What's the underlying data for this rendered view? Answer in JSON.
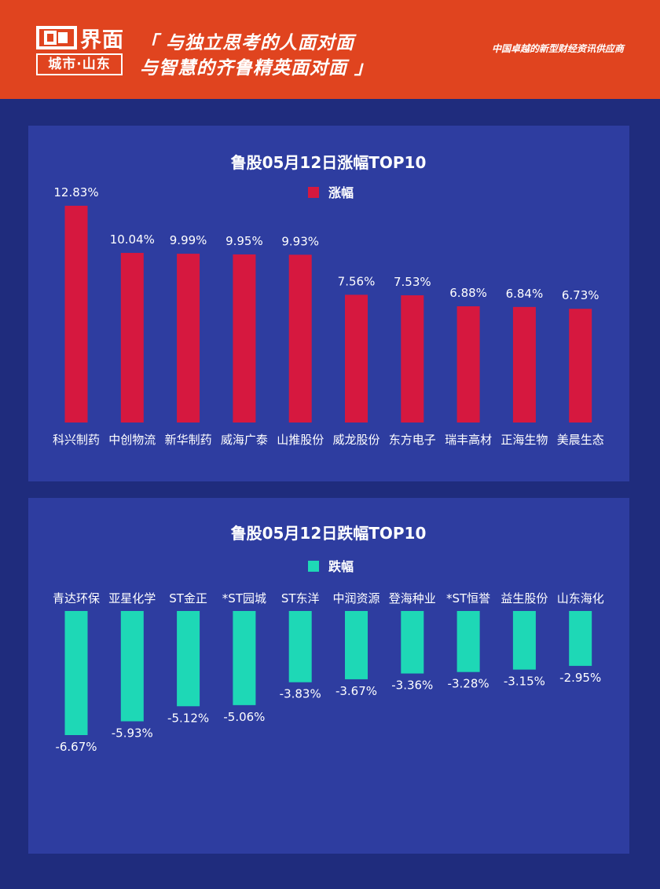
{
  "header": {
    "logo_main": "界面",
    "logo_sub": "城市·山东",
    "slogan_line1": "「 与独立思考的人面对面",
    "slogan_line2": "与智慧的齐鲁精英面对面 」",
    "tagline": "中国卓越的新型财经资讯供应商"
  },
  "colors": {
    "header_bg": "#e0441f",
    "page_bg": "#1f2c7d",
    "panel_bg": "#2e3da0",
    "gain_bar": "#d6183f",
    "loss_bar": "#1ed8b6",
    "text": "#ffffff"
  },
  "chart_data": [
    {
      "type": "bar",
      "title": "鲁股05月12日涨幅TOP10",
      "legend": "涨幅",
      "legend_placement": "top-center",
      "categories": [
        "科兴制药",
        "中创物流",
        "新华制药",
        "威海广泰",
        "山推股份",
        "威龙股份",
        "东方电子",
        "瑞丰高材",
        "正海生物",
        "美晨生态"
      ],
      "values": [
        12.83,
        10.04,
        9.99,
        9.95,
        9.93,
        7.56,
        7.53,
        6.88,
        6.84,
        6.73
      ],
      "labels": [
        "12.83%",
        "10.04%",
        "9.99%",
        "9.95%",
        "9.93%",
        "7.56%",
        "7.53%",
        "6.88%",
        "6.84%",
        "6.73%"
      ],
      "ylim": [
        0,
        14
      ],
      "grid": false,
      "color": "#d6183f"
    },
    {
      "type": "bar",
      "title": "鲁股05月12日跌幅TOP10",
      "legend": "跌幅",
      "legend_placement": "top-center",
      "categories": [
        "青达环保",
        "亚星化学",
        "ST金正",
        "*ST园城",
        "ST东洋",
        "中润资源",
        "登海种业",
        "*ST恒誉",
        "益生股份",
        "山东海化"
      ],
      "values": [
        -6.67,
        -5.93,
        -5.12,
        -5.06,
        -3.83,
        -3.67,
        -3.36,
        -3.28,
        -3.15,
        -2.95
      ],
      "labels": [
        "-6.67%",
        "-5.93%",
        "-5.12%",
        "-5.06%",
        "-3.83%",
        "-3.67%",
        "-3.36%",
        "-3.28%",
        "-3.15%",
        "-2.95%"
      ],
      "ylim": [
        -7,
        0
      ],
      "grid": false,
      "color": "#1ed8b6"
    }
  ]
}
